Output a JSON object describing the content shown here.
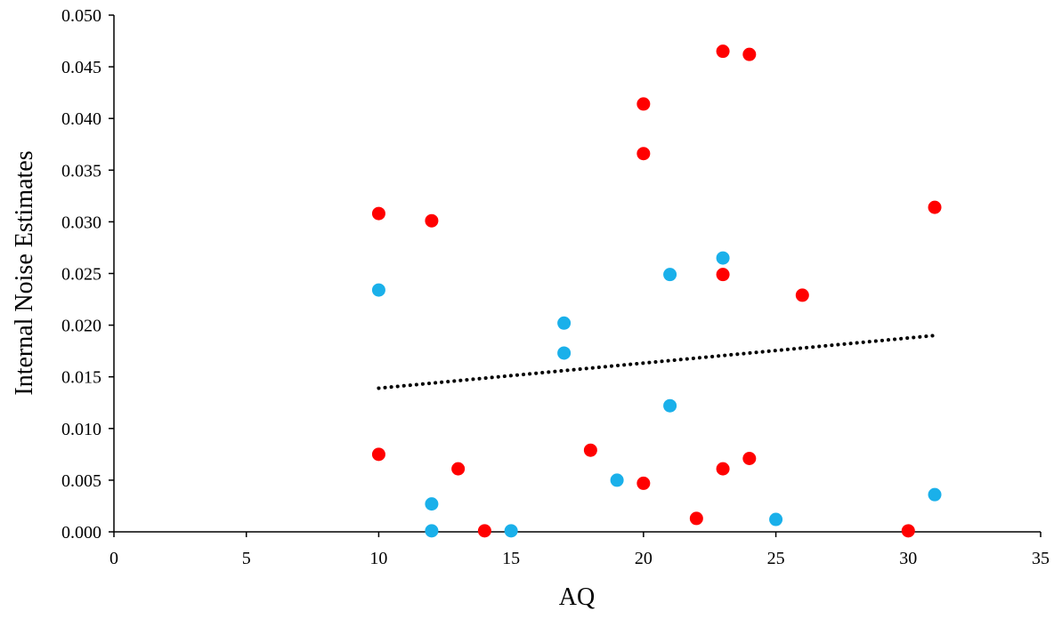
{
  "chart_data": {
    "type": "scatter",
    "title": "",
    "xlabel": "AQ",
    "ylabel": "Internal Noise Estimates",
    "xlim": [
      0,
      35
    ],
    "ylim": [
      0,
      0.05
    ],
    "x_ticks": [
      0,
      5,
      10,
      15,
      20,
      25,
      30,
      35
    ],
    "x_tick_labels": [
      "0",
      "5",
      "10",
      "15",
      "20",
      "25",
      "30",
      "35"
    ],
    "y_ticks": [
      0,
      0.005,
      0.01,
      0.015,
      0.02,
      0.025,
      0.03,
      0.035,
      0.04,
      0.045,
      0.05
    ],
    "y_tick_labels": [
      "0.000",
      "0.005",
      "0.010",
      "0.015",
      "0.020",
      "0.025",
      "0.030",
      "0.035",
      "0.040",
      "0.045",
      "0.050"
    ],
    "grid": false,
    "legend": "none",
    "series": [
      {
        "color": "#ff0000",
        "points": [
          {
            "x": 10,
            "y": 0.0308
          },
          {
            "x": 10,
            "y": 0.0075
          },
          {
            "x": 12,
            "y": 0.0301
          },
          {
            "x": 13,
            "y": 0.0061
          },
          {
            "x": 14,
            "y": 0.0001
          },
          {
            "x": 18,
            "y": 0.0079
          },
          {
            "x": 20,
            "y": 0.0414
          },
          {
            "x": 20,
            "y": 0.0366
          },
          {
            "x": 20,
            "y": 0.0047
          },
          {
            "x": 22,
            "y": 0.0013
          },
          {
            "x": 23,
            "y": 0.0465
          },
          {
            "x": 23,
            "y": 0.0249
          },
          {
            "x": 23,
            "y": 0.0061
          },
          {
            "x": 24,
            "y": 0.0462
          },
          {
            "x": 24,
            "y": 0.0071
          },
          {
            "x": 26,
            "y": 0.0229
          },
          {
            "x": 30,
            "y": 0.0001
          },
          {
            "x": 31,
            "y": 0.0314
          }
        ]
      },
      {
        "color": "#1ab0ea",
        "points": [
          {
            "x": 10,
            "y": 0.0234
          },
          {
            "x": 12,
            "y": 0.0027
          },
          {
            "x": 12,
            "y": 0.0001
          },
          {
            "x": 15,
            "y": 0.0001
          },
          {
            "x": 17,
            "y": 0.0202
          },
          {
            "x": 17,
            "y": 0.0173
          },
          {
            "x": 19,
            "y": 0.005
          },
          {
            "x": 21,
            "y": 0.0249
          },
          {
            "x": 21,
            "y": 0.0122
          },
          {
            "x": 23,
            "y": 0.0265
          },
          {
            "x": 25,
            "y": 0.0012
          },
          {
            "x": 31,
            "y": 0.0036
          }
        ]
      }
    ],
    "trendline": {
      "style": "dotted",
      "color": "#000000",
      "x": [
        10,
        31
      ],
      "y": [
        0.0139,
        0.019
      ]
    }
  }
}
